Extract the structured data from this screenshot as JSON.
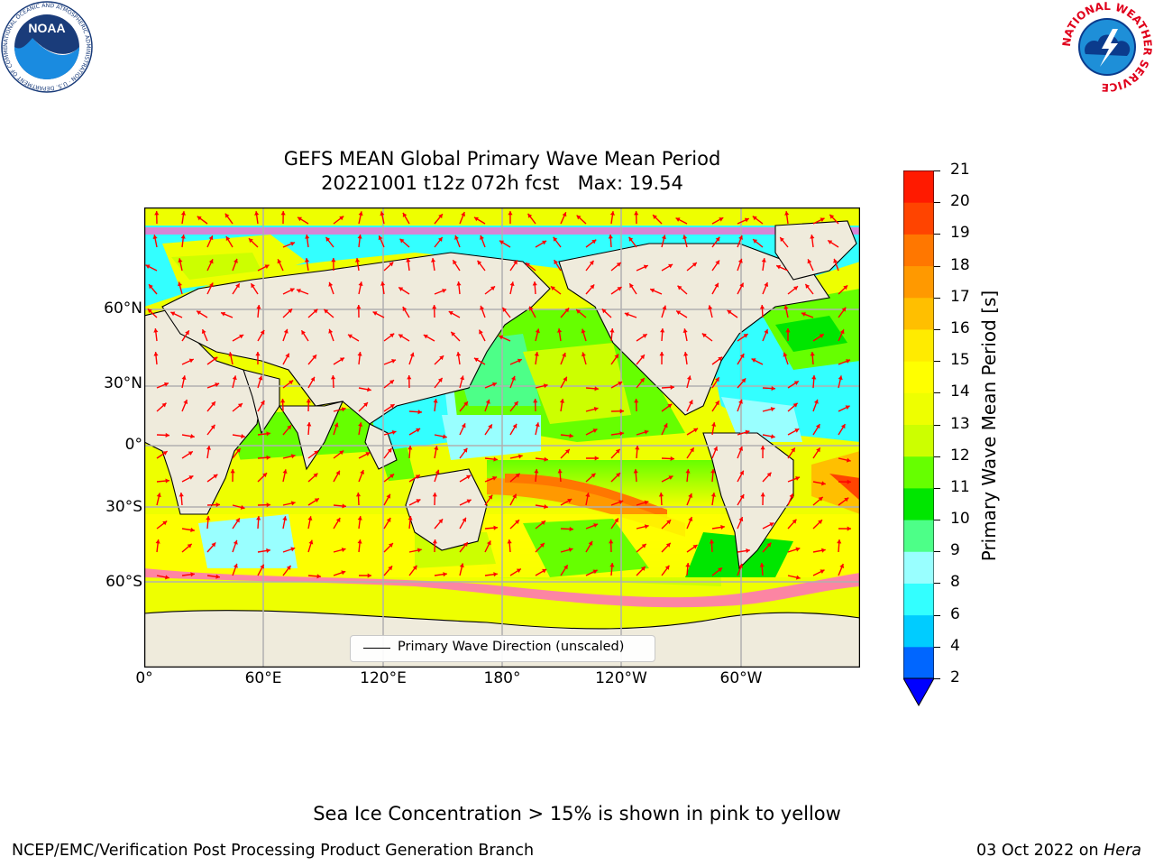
{
  "header": {
    "title_line1": "GEFS MEAN Global Primary Wave Mean Period",
    "title_line2": "20221001 t12z 072h fcst   Max: 19.54"
  },
  "logos": {
    "noaa_text": "NOAA",
    "noaa_ring_text": "NATIONAL OCEANIC AND ATMOSPHERIC ADMINISTRATION · U.S. DEPARTMENT OF COMMERCE",
    "nws_ring_text": "NATIONAL WEATHER SERVICE"
  },
  "map": {
    "projection": "PlateCarree, central longitude 180",
    "lat_ticks": [
      "60°N",
      "30°N",
      "0°",
      "30°S",
      "60°S"
    ],
    "lon_ticks": [
      "0°",
      "60°E",
      "120°E",
      "180°",
      "120°W",
      "60°W"
    ],
    "gridlines": true,
    "legend": {
      "label": "Primary Wave Direction (unscaled)",
      "placement": "bottom-center"
    }
  },
  "colorbar": {
    "label": "Primary Wave Mean Period [s]",
    "ticks": [
      "2",
      "4",
      "6",
      "8",
      "9",
      "10",
      "11",
      "12",
      "13",
      "14",
      "15",
      "16",
      "17",
      "18",
      "19",
      "20",
      "21"
    ],
    "colors": [
      "#0066ff",
      "#00ccff",
      "#33ffff",
      "#99ffff",
      "#4dff88",
      "#00e600",
      "#66ff00",
      "#ccff00",
      "#eeff00",
      "#ffff00",
      "#ffeb00",
      "#ffbf00",
      "#ff9900",
      "#ff7700",
      "#ff4400",
      "#ff1a00"
    ],
    "underflow_color": "#0000ff"
  },
  "footer": {
    "ice_note": "Sea Ice Concentration > 15% is shown in pink to yellow",
    "left": "NCEP/EMC/Verification Post Processing Product Generation Branch",
    "right_date": "03 Oct 2022 on ",
    "right_host": "Hera"
  },
  "palette": {
    "land": "#efebdc",
    "ice_edge": "#ff66cc",
    "arrow": "#ff0000",
    "grid": "#b0b0b0"
  }
}
